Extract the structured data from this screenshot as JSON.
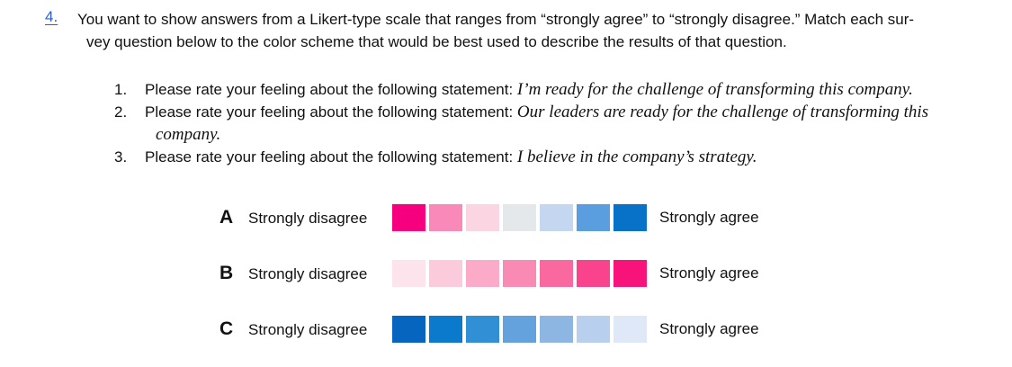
{
  "question": {
    "number": "4.",
    "text_line1": "You want to show answers from a Likert-type scale that ranges from “strongly agree” to “strongly disagree.” Match each sur-",
    "text_line2": "vey question below to the color scheme that would be best used to describe the results of that question."
  },
  "items": [
    {
      "number": "1.",
      "stem": "Please rate your feeling about the following statement: ",
      "quote": "I’m ready for the challenge of transforming this company.",
      "continuation": ""
    },
    {
      "number": "2.",
      "stem": "Please rate your feeling about the following statement: ",
      "quote": "Our leaders are ready for the challenge of transforming this",
      "continuation": "company."
    },
    {
      "number": "3.",
      "stem": "Please rate your feeling about the following statement: ",
      "quote": "I believe in the company’s strategy.",
      "continuation": ""
    }
  ],
  "schemes": [
    {
      "letter": "A",
      "left_label": "Strongly disagree",
      "right_label": "Strongly agree",
      "colors": [
        "#f7007f",
        "#f989b8",
        "#fbd5e1",
        "#e4e8eb",
        "#c5d6f1",
        "#5b9ee0",
        "#0772c8"
      ]
    },
    {
      "letter": "B",
      "left_label": "Strongly disagree",
      "right_label": "Strongly agree",
      "colors": [
        "#fde4ec",
        "#fccbdb",
        "#fbabc8",
        "#f98ab3",
        "#f9699f",
        "#f9438d",
        "#f8137b"
      ]
    },
    {
      "letter": "C",
      "left_label": "Strongly disagree",
      "right_label": "Strongly agree",
      "colors": [
        "#0565bf",
        "#0b7acd",
        "#318fd6",
        "#64a2de",
        "#8db6e3",
        "#b8d0ee",
        "#dee8f6"
      ]
    }
  ]
}
